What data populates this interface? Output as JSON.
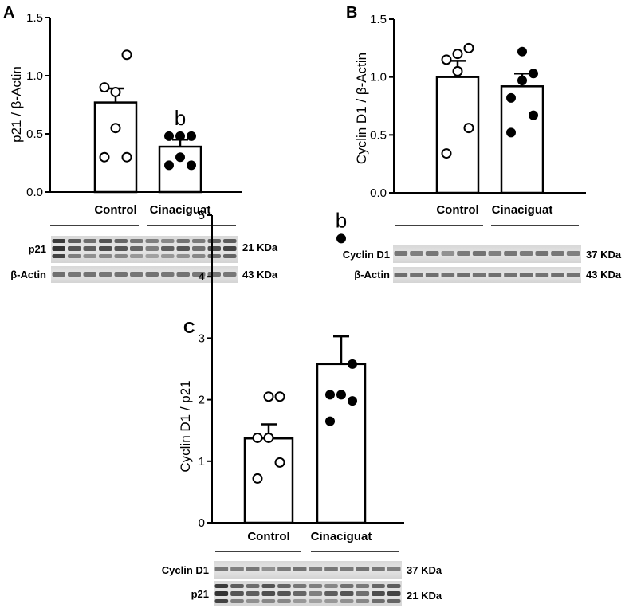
{
  "chart_data": [
    {
      "panel": "A",
      "type": "bar",
      "ylabel": "p21 / β-Actin",
      "ylim": [
        0,
        1.5
      ],
      "yticks": [
        "0.0",
        "0.5",
        "1.0",
        "1.5"
      ],
      "categories": [
        "Control",
        "Cinaciguat"
      ],
      "values": [
        0.77,
        0.39
      ],
      "sem": [
        0.12,
        0.06
      ],
      "points": [
        [
          0.3,
          0.3,
          0.55,
          0.9,
          0.86,
          1.18
        ],
        [
          0.23,
          0.23,
          0.48,
          0.48,
          0.48,
          0.3
        ]
      ],
      "point_style": [
        "open",
        "filled"
      ],
      "significance": [
        "",
        "b"
      ],
      "blots": [
        {
          "label": "p21",
          "size": "21 KDa"
        },
        {
          "label": "β-Actin",
          "size": "43 KDa"
        }
      ]
    },
    {
      "panel": "B",
      "type": "bar",
      "ylabel": "Cyclin D1 / β-Actin",
      "ylim": [
        0,
        1.5
      ],
      "yticks": [
        "0.0",
        "0.5",
        "1.0",
        "1.5"
      ],
      "categories": [
        "Control",
        "Cinaciguat"
      ],
      "values": [
        1.0,
        0.92
      ],
      "sem": [
        0.14,
        0.11
      ],
      "points": [
        [
          0.34,
          0.56,
          1.05,
          1.15,
          1.2,
          1.25
        ],
        [
          0.52,
          0.67,
          0.82,
          0.97,
          1.03,
          1.22
        ]
      ],
      "point_style": [
        "open",
        "filled"
      ],
      "significance": [
        "",
        ""
      ],
      "blots": [
        {
          "label": "Cyclin D1",
          "size": "37 KDa"
        },
        {
          "label": "β-Actin",
          "size": "43 KDa"
        }
      ]
    },
    {
      "panel": "C",
      "type": "bar",
      "ylabel": "Cyclin D1 / p21",
      "ylim": [
        0,
        5
      ],
      "yticks": [
        "0",
        "1",
        "2",
        "3",
        "4",
        "5"
      ],
      "categories": [
        "Control",
        "Cinaciguat"
      ],
      "values": [
        1.37,
        2.58
      ],
      "sem": [
        0.23,
        0.45
      ],
      "points": [
        [
          0.72,
          0.98,
          1.38,
          1.38,
          2.05,
          2.05
        ],
        [
          1.65,
          1.98,
          2.08,
          2.08,
          2.58,
          4.62
        ]
      ],
      "point_style": [
        "open",
        "filled"
      ],
      "significance": [
        "",
        "b"
      ],
      "blots": [
        {
          "label": "Cyclin D1",
          "size": "37 KDa"
        },
        {
          "label": "p21",
          "size": "21 KDa"
        }
      ]
    }
  ]
}
